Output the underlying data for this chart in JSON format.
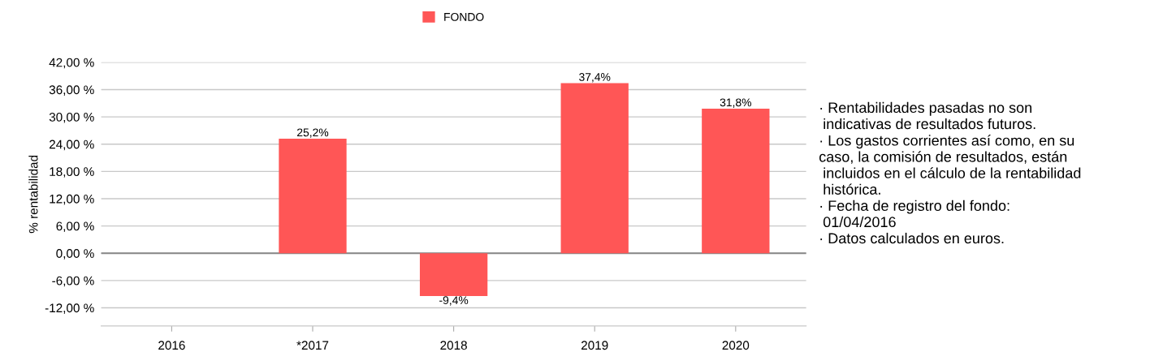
{
  "chart_data": {
    "type": "bar",
    "categories": [
      "2016",
      "*2017",
      "2018",
      "2019",
      "2020"
    ],
    "series": [
      {
        "name": "FONDO",
        "color": "#ff5656",
        "values": [
          null,
          25.2,
          -9.4,
          37.4,
          31.8
        ],
        "value_labels": [
          null,
          "25,2%",
          "-9,4%",
          "37,4%",
          "31,8%"
        ]
      }
    ],
    "ylabel": "% rentabilidad",
    "ylim": [
      -16,
      42
    ],
    "yticks": [
      {
        "value": -12,
        "label": "-12,00 %"
      },
      {
        "value": -6,
        "label": "-6,00 %"
      },
      {
        "value": 0,
        "label": "0,00 %"
      },
      {
        "value": 6,
        "label": "6,00 %"
      },
      {
        "value": 12,
        "label": "12,00 %"
      },
      {
        "value": 18,
        "label": "18,00 %"
      },
      {
        "value": 24,
        "label": "24,00 %"
      },
      {
        "value": 30,
        "label": "30,00 %"
      },
      {
        "value": 36,
        "label": "36,00 %"
      },
      {
        "value": 42,
        "label": "42,00 %"
      }
    ],
    "grid": "y",
    "legend": "top",
    "annotations": [
      "· Rentabilidades pasadas no son\n indicativas de resultados futuros.",
      "· Los gastos corrientes así como, en su\ncaso, la comisión de resultados, están\n incluidos en el cálculo de la rentabilidad\n histórica.",
      "· Fecha de registro del fondo:\n 01/04/2016",
      "· Datos calculados en euros."
    ]
  }
}
